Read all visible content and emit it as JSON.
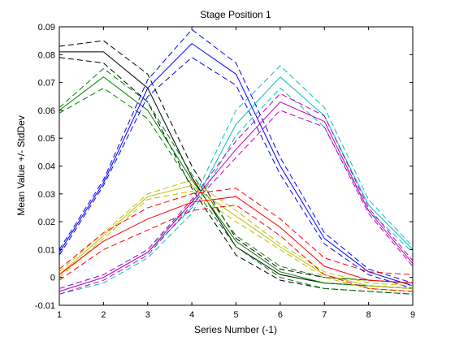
{
  "chart_data": {
    "type": "line",
    "title": "Stage Position 1",
    "xlabel": "Series Number (-1)",
    "ylabel": "Mean Value +/- StdDev",
    "xlim": [
      1,
      9
    ],
    "ylim": [
      -0.01,
      0.09
    ],
    "grid": false,
    "xticks": [
      "1",
      "2",
      "3",
      "4",
      "5",
      "6",
      "7",
      "8",
      "9"
    ],
    "yticks": [
      "-0.01",
      "0",
      "0.01",
      "0.02",
      "0.03",
      "0.04",
      "0.05",
      "0.06",
      "0.07",
      "0.08",
      "0.09"
    ],
    "x": [
      1,
      2,
      3,
      4,
      5,
      6,
      7,
      8,
      9
    ],
    "series": [
      {
        "color": "#000000",
        "mean": [
          0.081,
          0.081,
          0.068,
          0.036,
          0.011,
          0.001,
          -0.002,
          -0.003,
          -0.004
        ],
        "upper": [
          0.083,
          0.085,
          0.073,
          0.04,
          0.014,
          0.003,
          0.0,
          -0.001,
          -0.002
        ],
        "lower": [
          0.079,
          0.077,
          0.063,
          0.032,
          0.008,
          -0.001,
          -0.004,
          -0.005,
          -0.006
        ]
      },
      {
        "color": "#007f00",
        "mean": [
          0.06,
          0.072,
          0.06,
          0.035,
          0.013,
          0.002,
          -0.002,
          -0.003,
          -0.004
        ],
        "upper": [
          0.061,
          0.075,
          0.063,
          0.037,
          0.015,
          0.004,
          0.0,
          -0.001,
          -0.002
        ],
        "lower": [
          0.059,
          0.068,
          0.057,
          0.033,
          0.011,
          0.0,
          -0.004,
          -0.005,
          -0.006
        ]
      },
      {
        "color": "#0000ff",
        "mean": [
          0.009,
          0.034,
          0.068,
          0.084,
          0.073,
          0.04,
          0.014,
          0.002,
          -0.003
        ],
        "upper": [
          0.01,
          0.035,
          0.071,
          0.089,
          0.077,
          0.043,
          0.016,
          0.003,
          -0.002
        ],
        "lower": [
          0.008,
          0.033,
          0.065,
          0.079,
          0.069,
          0.037,
          0.012,
          0.001,
          -0.004
        ]
      },
      {
        "color": "#00bfbf",
        "mean": [
          -0.005,
          0.0,
          0.009,
          0.025,
          0.055,
          0.072,
          0.058,
          0.026,
          0.01
        ],
        "upper": [
          -0.004,
          0.001,
          0.01,
          0.027,
          0.06,
          0.076,
          0.061,
          0.028,
          0.011
        ],
        "lower": [
          -0.006,
          -0.002,
          0.007,
          0.023,
          0.051,
          0.068,
          0.054,
          0.024,
          0.009
        ]
      },
      {
        "color": "#bf00bf",
        "mean": [
          -0.005,
          0.0,
          0.009,
          0.027,
          0.046,
          0.063,
          0.056,
          0.024,
          0.005
        ],
        "upper": [
          -0.004,
          0.001,
          0.01,
          0.028,
          0.049,
          0.066,
          0.058,
          0.025,
          0.006
        ],
        "lower": [
          -0.006,
          -0.001,
          0.008,
          0.026,
          0.043,
          0.06,
          0.054,
          0.023,
          0.004
        ]
      },
      {
        "color": "#bfbf00",
        "mean": [
          0.001,
          0.015,
          0.029,
          0.033,
          0.022,
          0.011,
          0.001,
          -0.003,
          -0.004
        ],
        "upper": [
          0.002,
          0.016,
          0.03,
          0.035,
          0.024,
          0.012,
          0.002,
          -0.002,
          -0.003
        ],
        "lower": [
          0.0,
          0.014,
          0.028,
          0.031,
          0.02,
          0.01,
          0.0,
          -0.004,
          -0.005
        ]
      },
      {
        "color": "#ff0000",
        "mean": [
          0.001,
          0.013,
          0.021,
          0.027,
          0.029,
          0.018,
          0.004,
          -0.001,
          -0.002
        ],
        "upper": [
          0.003,
          0.016,
          0.025,
          0.03,
          0.032,
          0.021,
          0.007,
          0.002,
          0.001
        ],
        "lower": [
          -0.001,
          0.01,
          0.017,
          0.024,
          0.026,
          0.015,
          0.001,
          -0.004,
          -0.005
        ]
      }
    ]
  }
}
